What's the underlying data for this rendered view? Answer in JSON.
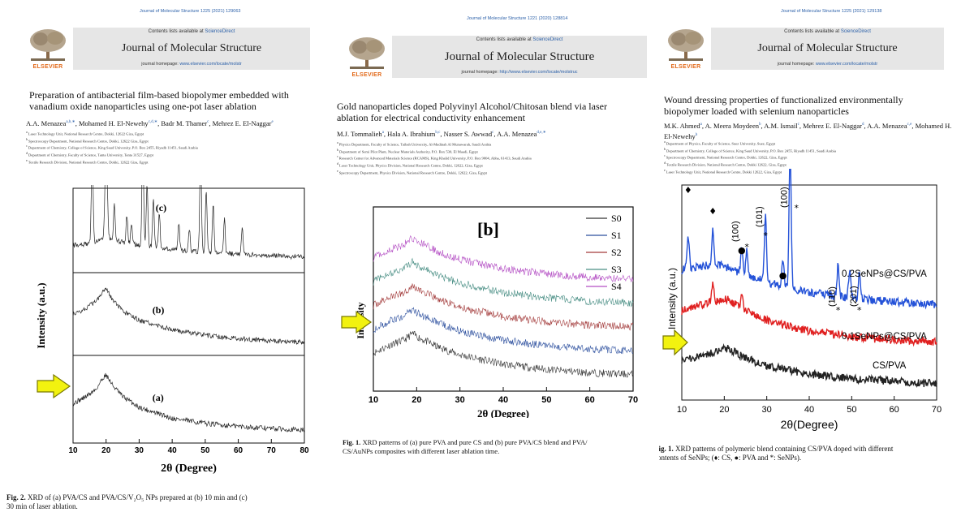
{
  "colors": {
    "link": "#2a5fa8",
    "elsevier": "#e26a1b",
    "band": "#e6e6e6",
    "arrow_fill": "#f2f20f",
    "arrow_stroke": "#7a7a00"
  },
  "papers": [
    {
      "citation": "Journal of Molecular Structure 1225 (2021) 129063",
      "contents_prefix": "Contents lists available at ",
      "contents_link": "ScienceDirect",
      "journal_name": "Journal of Molecular Structure",
      "homepage_prefix": "journal homepage: ",
      "homepage_url": "www.elsevier.com/locate/molstr",
      "publisher": "ELSEVIER",
      "title_lines": [
        "Preparation of antibacterial film-based biopolymer embedded with",
        "vanadium oxide nanoparticles using one-pot laser ablation"
      ],
      "authors": [
        {
          "name": "A.A. Menazea",
          "sup": "a,b,∗"
        },
        {
          "name": "Mohamed H. El-Newehy",
          "sup": "c,d,∗"
        },
        {
          "name": "Badr M. Thamer",
          "sup": "c"
        },
        {
          "name": "Mehrez E. El-Naggar",
          "sup": "e"
        }
      ],
      "affiliations": [
        {
          "sup": "a",
          "text": "Laser Technology Unit, National Research Centre, Dokki, 12622 Giza, Egypt"
        },
        {
          "sup": "b",
          "text": "Spectroscopy Department, National Research Centre, Dokki, 12622 Giza, Egypt"
        },
        {
          "sup": "c",
          "text": "Department of Chemistry, College of Science, King Saud University, P.O. Box 2455, Riyadh 11451, Saudi Arabia"
        },
        {
          "sup": "d",
          "text": "Department of Chemistry, Faculty of Science, Tanta University, Tanta 31527, Egypt"
        },
        {
          "sup": "e",
          "text": "Textile Research Division, National Research Centre, Dokki, 12622 Giza, Egypt"
        }
      ],
      "caption_lead": "Fig. 2.",
      "caption_lines": [
        "XRD of (a) PVA/CS and PVA/CS/V₂O₅ NPs prepared at (b) 10 min and (c)",
        "30 min of laser ablation."
      ]
    },
    {
      "citation": "Journal of Molecular Structure 1221 (2020) 128814",
      "contents_prefix": "Contents lists available at ",
      "contents_link": "ScienceDirect",
      "journal_name": "Journal of Molecular Structure",
      "homepage_prefix": "journal homepage: ",
      "homepage_url": "http://www.elsevier.com/locate/molstruc",
      "publisher": "ELSEVIER",
      "title_lines": [
        "Gold nanoparticles doped Polyvinyl Alcohol/Chitosan blend via laser",
        "ablation for electrical conductivity enhancement"
      ],
      "authors": [
        {
          "name": "M.J. Tommalieh",
          "sup": "a"
        },
        {
          "name": "Hala A. Ibrahium",
          "sup": "b,c"
        },
        {
          "name": "Nasser S. Awwad",
          "sup": "c"
        },
        {
          "name": "A.A. Menazea",
          "sup": "d,e,∗"
        }
      ],
      "affiliations": [
        {
          "sup": "a",
          "text": "Physics Department, Faculty of Science, Taibah University, Al-Madinah Al Munawarah, Saudi Arabia"
        },
        {
          "sup": "b",
          "text": "Department of Semi Pilot Plant, Nuclear Materials Authority, P.O. Box 530, El Maadi, Egypt"
        },
        {
          "sup": "c",
          "text": "Research Center for Advanced Materials Science (RCAMS), King Khalid University, P.O. Box 9004, Abha, 61413, Saudi Arabia"
        },
        {
          "sup": "d",
          "text": "Laser Technology Unit, Physics Division, National Research Centre, Dokki, 12622, Giza, Egypt"
        },
        {
          "sup": "e",
          "text": "Spectroscopy Department, Physics Division, National Research Centre, Dokki, 12622, Giza, Egypt"
        }
      ],
      "caption_lead": "Fig. 1.",
      "caption_lines": [
        "XRD patterns of (a) pure PVA and pure CS and (b) pure PVA/CS blend and PVA/",
        "CS/AuNPs composites with different laser ablation time."
      ]
    },
    {
      "citation": "Journal of Molecular Structure 1225 (2021) 129138",
      "contents_prefix": "Contents lists available at ",
      "contents_link": "ScienceDirect",
      "journal_name": "Journal of Molecular Structure",
      "homepage_prefix": "journal homepage: ",
      "homepage_url": "www.elsevier.com/locate/molstr",
      "publisher": "ELSEVIER",
      "title_lines": [
        "Wound dressing properties of functionalized environmentally",
        "biopolymer loaded with selenium nanoparticles"
      ],
      "authors": [
        {
          "name": "M.K. Ahmed",
          "sup": "a"
        },
        {
          "name": "A. Meera Moydeen",
          "sup": "b"
        },
        {
          "name": "A.M. Ismail",
          "sup": "c"
        },
        {
          "name": "Mehrez E. El-Naggar",
          "sup": "d"
        },
        {
          "name": "A.A. Menazea",
          "sup": "c,e"
        },
        {
          "name": "Mohamed H. El-Newehy",
          "sup": "b"
        }
      ],
      "affiliations": [
        {
          "sup": "a",
          "text": "Department of Physics, Faculty of Science, Suez University, Suez, Egypt"
        },
        {
          "sup": "b",
          "text": "Department of Chemistry, College of Science, King Saud University, P.O. Box 2455, Riyadh 11451, Saudi Arabia"
        },
        {
          "sup": "c",
          "text": "Spectroscopy Department, National Research Centre, Dokki, 12622, Giza, Egypt"
        },
        {
          "sup": "d",
          "text": "Textile Research Division, National Research Centre, Dokki 12622, Giza, Egypt"
        },
        {
          "sup": "e",
          "text": "Laser Technology Unit, National Research Centre, Dokki 12622, Giza, Egypt"
        }
      ],
      "caption_lead": "Fig. 1.",
      "caption_lines": [
        "XRD patterns of polymeric blend containing CS/PVA doped with different",
        "contents of SeNPs; (♦: CS, ●: PVA and *: SeNPs)."
      ]
    }
  ],
  "chart_data": [
    {
      "type": "line",
      "xlabel": "2θ (Degree)",
      "ylabel": "Intensity (a.u.)",
      "xlim": [
        10,
        80
      ],
      "xticks": [
        "10",
        "20",
        "30",
        "40",
        "50",
        "60",
        "70",
        "80"
      ],
      "series": [
        {
          "label": "(a)",
          "x": [
            10,
            14,
            17,
            19,
            20,
            22,
            25,
            30,
            40,
            50,
            60,
            70,
            80
          ],
          "y": [
            0.45,
            0.55,
            0.65,
            0.8,
            0.85,
            0.7,
            0.55,
            0.4,
            0.25,
            0.18,
            0.14,
            0.11,
            0.09
          ]
        },
        {
          "label": "(b)",
          "x": [
            10,
            14,
            17,
            19,
            20,
            22,
            25,
            30,
            40,
            50,
            60,
            70,
            80
          ],
          "y": [
            0.5,
            0.6,
            0.7,
            0.85,
            0.9,
            0.72,
            0.55,
            0.42,
            0.28,
            0.2,
            0.15,
            0.12,
            0.1
          ]
        },
        {
          "label": "(c)",
          "x": [
            10,
            14,
            17,
            19,
            20,
            22,
            25,
            30,
            40,
            50,
            60,
            70,
            80
          ],
          "y": [
            0.3,
            0.32,
            0.35,
            0.4,
            0.42,
            0.38,
            0.34,
            0.3,
            0.24,
            0.2,
            0.17,
            0.15,
            0.13
          ]
        }
      ],
      "peaks_c": [
        15.8,
        19.8,
        20.3,
        22.5,
        26.3,
        27.7,
        31.1,
        32.4,
        34.3,
        36.1,
        42.0,
        45.2,
        48.6,
        50.3,
        52.4,
        55.8,
        61.2
      ]
    },
    {
      "type": "line",
      "xlabel": "2θ (Degree)",
      "ylabel": "Intensity",
      "panel_label": "[b]",
      "xlim": [
        10,
        70
      ],
      "xticks": [
        "10",
        "20",
        "30",
        "40",
        "50",
        "60",
        "70"
      ],
      "series": [
        {
          "name": "S0",
          "color": "#333333",
          "x": [
            10,
            14,
            17,
            19,
            21,
            25,
            30,
            40,
            50,
            60,
            70
          ],
          "y": [
            0.35,
            0.45,
            0.5,
            0.58,
            0.52,
            0.42,
            0.33,
            0.22,
            0.16,
            0.12,
            0.1
          ]
        },
        {
          "name": "S1",
          "color": "#2c4f9e",
          "x": [
            10,
            14,
            17,
            19,
            21,
            25,
            30,
            40,
            50,
            60,
            70
          ],
          "y": [
            0.35,
            0.45,
            0.5,
            0.58,
            0.52,
            0.42,
            0.33,
            0.22,
            0.16,
            0.12,
            0.1
          ]
        },
        {
          "name": "S2",
          "color": "#a33b3b",
          "x": [
            10,
            14,
            17,
            19,
            21,
            25,
            30,
            40,
            50,
            60,
            70
          ],
          "y": [
            0.35,
            0.45,
            0.5,
            0.58,
            0.52,
            0.42,
            0.33,
            0.22,
            0.16,
            0.12,
            0.1
          ]
        },
        {
          "name": "S3",
          "color": "#4a8f85",
          "x": [
            10,
            14,
            17,
            19,
            21,
            25,
            30,
            40,
            50,
            60,
            70
          ],
          "y": [
            0.35,
            0.45,
            0.5,
            0.58,
            0.52,
            0.42,
            0.33,
            0.22,
            0.16,
            0.12,
            0.1
          ]
        },
        {
          "name": "S4",
          "color": "#b44fc4",
          "x": [
            10,
            14,
            17,
            19,
            21,
            25,
            30,
            40,
            50,
            60,
            70
          ],
          "y": [
            0.35,
            0.45,
            0.5,
            0.58,
            0.52,
            0.42,
            0.33,
            0.22,
            0.16,
            0.12,
            0.1
          ]
        }
      ]
    },
    {
      "type": "line",
      "xlabel": "2θ(Degree)",
      "ylabel": "Intensity (a.u.)",
      "xlim": [
        10,
        70
      ],
      "xticks": [
        "10",
        "20",
        "30",
        "40",
        "50",
        "60",
        "70"
      ],
      "series": [
        {
          "name": "CS/PVA",
          "color": "#222222",
          "x": [
            10,
            12,
            15,
            18,
            20,
            22,
            25,
            30,
            40,
            50,
            60,
            70
          ],
          "y": [
            0.4,
            0.42,
            0.45,
            0.5,
            0.55,
            0.5,
            0.42,
            0.32,
            0.22,
            0.16,
            0.13,
            0.1
          ]
        },
        {
          "name": "0.1SeNPs@CS/PVA",
          "color": "#e02020",
          "x": [
            10,
            12,
            15,
            18,
            20,
            22,
            25,
            30,
            40,
            50,
            60,
            70
          ],
          "y": [
            0.5,
            0.55,
            0.58,
            0.62,
            0.66,
            0.6,
            0.5,
            0.38,
            0.25,
            0.18,
            0.14,
            0.12
          ]
        },
        {
          "name": "0.2SeNPs@CS/PVA",
          "color": "#2452d8",
          "x": [
            10,
            12,
            15,
            18,
            20,
            22,
            25,
            30,
            40,
            50,
            60,
            70
          ],
          "y": [
            0.55,
            0.58,
            0.6,
            0.62,
            0.6,
            0.55,
            0.5,
            0.4,
            0.28,
            0.2,
            0.16,
            0.13
          ]
        }
      ],
      "peak_labels": [
        {
          "label": "(100)",
          "x": 24
        },
        {
          "label": "(101)",
          "x": 29.7
        },
        {
          "label": "(100)",
          "x": 35.5
        },
        {
          "label": "(110)",
          "x": 46.8
        },
        {
          "label": "(201)",
          "x": 51.8
        }
      ],
      "markers": [
        {
          "symbol": "♦",
          "x": 11.5
        },
        {
          "symbol": "♦",
          "x": 17.3
        },
        {
          "symbol": "●",
          "x": 24.1
        },
        {
          "symbol": "●",
          "x": 33.8
        },
        {
          "symbol": "*",
          "x": 25.3
        },
        {
          "symbol": "*",
          "x": 29.7
        },
        {
          "symbol": "*",
          "x": 37.0
        },
        {
          "symbol": "*",
          "x": 46.8
        },
        {
          "symbol": "*",
          "x": 51.8
        }
      ]
    }
  ]
}
